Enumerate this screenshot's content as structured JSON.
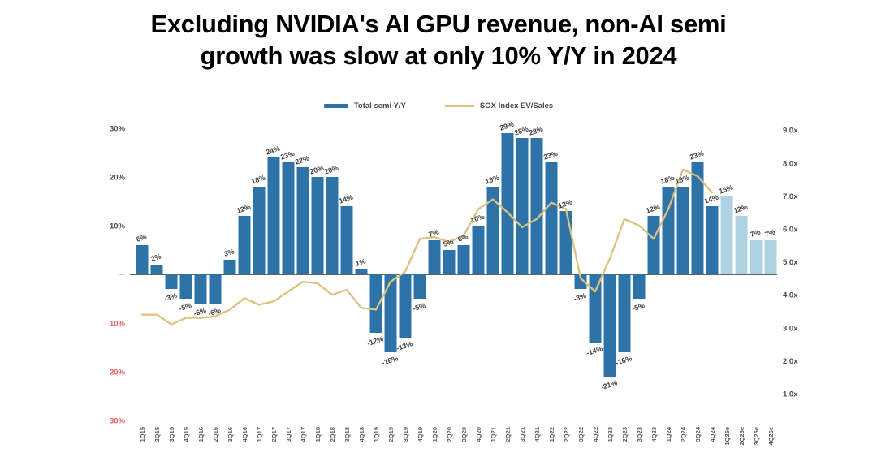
{
  "title": {
    "line1": "Excluding NVIDIA's AI GPU revenue, non-AI semi",
    "line2": "growth was slow at only 10% Y/Y in 2024"
  },
  "legend": {
    "bar_label": "Total semi Y/Y",
    "line_label": "SOX Index EV/Sales"
  },
  "colors": {
    "bar": "#2E73A8",
    "bar_forecast": "#AFD2E2",
    "line": "#DCC17F",
    "negative_tick": "#E25F5F",
    "axis_text": "#4D4D4D",
    "bar_label": "#404040",
    "x_label": "#595959",
    "zero_line": "#2b2b2b"
  },
  "chart_data": {
    "type": "bar",
    "title": "Excluding NVIDIA's AI GPU revenue, non-AI semi growth was slow at only 10% Y/Y in 2024",
    "categories": [
      "1Q15",
      "2Q15",
      "3Q15",
      "4Q15",
      "1Q16",
      "2Q16",
      "3Q16",
      "4Q16",
      "1Q17",
      "2Q17",
      "3Q17",
      "4Q17",
      "1Q18",
      "2Q18",
      "3Q18",
      "4Q18",
      "1Q19",
      "2Q19",
      "3Q19",
      "4Q19",
      "1Q20",
      "2Q20",
      "3Q20",
      "4Q20",
      "1Q21",
      "2Q21",
      "3Q21",
      "4Q21",
      "1Q22",
      "2Q22",
      "3Q22",
      "4Q22",
      "1Q23",
      "2Q23",
      "3Q23",
      "4Q23",
      "1Q24",
      "2Q24",
      "3Q24",
      "4Q24",
      "1Q25e",
      "2Q25e",
      "3Q25e",
      "4Q25e"
    ],
    "forecast_start_index": 40,
    "series": [
      {
        "name": "Total semi Y/Y",
        "type": "bar",
        "axis": "left",
        "unit": "%",
        "values": [
          6,
          2,
          -3,
          -5,
          -6,
          -6,
          3,
          12,
          18,
          24,
          23,
          22,
          20,
          20,
          14,
          1,
          -12,
          -16,
          -13,
          -5,
          7,
          5,
          6,
          10,
          18,
          29,
          28,
          28,
          23,
          13,
          -3,
          -14,
          -21,
          -16,
          -5,
          12,
          18,
          18,
          23,
          14,
          16,
          12,
          7,
          7
        ],
        "labels": [
          "6%",
          "2%",
          "-3%",
          "-5%",
          "-6%",
          "-6%",
          "3%",
          "12%",
          "18%",
          "24%",
          "23%",
          "22%",
          "20%",
          "20%",
          "14%",
          "1%",
          "-12%",
          "-16%",
          "-13%",
          "-5%",
          "7%",
          "5%",
          "6%",
          "10%",
          "18%",
          "29%",
          "28%",
          "28%",
          "23%",
          "13%",
          "-3%",
          "-14%",
          "-21%",
          "-16%",
          "-5%",
          "12%",
          "18%",
          "18%",
          "23%",
          "14%",
          "16%",
          "12%",
          "7%",
          "7%"
        ]
      },
      {
        "name": "SOX Index EV/Sales",
        "type": "line",
        "axis": "right",
        "unit": "x",
        "values": [
          3.4,
          3.4,
          3.1,
          3.3,
          3.3,
          3.35,
          3.55,
          3.9,
          3.7,
          3.8,
          4.1,
          4.4,
          4.35,
          4.0,
          4.15,
          3.6,
          3.55,
          4.4,
          4.7,
          5.7,
          5.75,
          5.6,
          5.8,
          6.6,
          6.9,
          6.5,
          6.05,
          6.3,
          6.8,
          6.6,
          4.5,
          4.1,
          5.1,
          6.3,
          6.1,
          5.7,
          6.6,
          7.8,
          7.6,
          7.1
        ]
      }
    ],
    "left_axis": {
      "range": [
        -30,
        30
      ],
      "ticks": [
        {
          "label": "30%",
          "value": 30
        },
        {
          "label": "20%",
          "value": 20
        },
        {
          "label": "10%",
          "value": 10
        },
        {
          "label": "10%",
          "value": -10
        },
        {
          "label": "20%",
          "value": -20
        },
        {
          "label": "30%",
          "value": -30
        }
      ]
    },
    "right_axis": {
      "range": [
        1,
        9
      ],
      "ticks": [
        {
          "label": "9.0x",
          "value": 9
        },
        {
          "label": "8.0x",
          "value": 8
        },
        {
          "label": "7.0x",
          "value": 7
        },
        {
          "label": "6.0x",
          "value": 6
        },
        {
          "label": "5.0x",
          "value": 5
        },
        {
          "label": "4.0x",
          "value": 4
        },
        {
          "label": "3.0x",
          "value": 3
        },
        {
          "label": "2.0x",
          "value": 2
        },
        {
          "label": "1.0x",
          "value": 1
        }
      ]
    },
    "legend_position": "top-center",
    "grid": false
  }
}
